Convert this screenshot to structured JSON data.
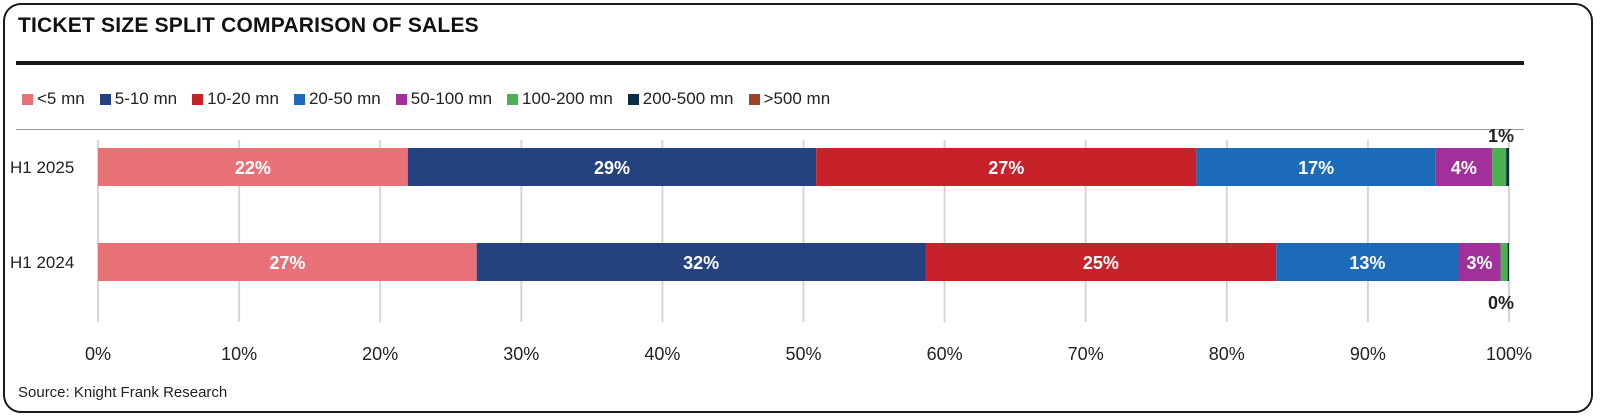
{
  "title": "TICKET SIZE SPLIT COMPARISON OF SALES",
  "source": "Source: Knight Frank Research",
  "chart_data": {
    "type": "bar",
    "orientation": "horizontal",
    "stacked": true,
    "categories": [
      "H1 2025",
      "H1 2024"
    ],
    "series": [
      {
        "name": "<5 mn",
        "color": "#e87177",
        "values": [
          22,
          27
        ],
        "labels": [
          "22%",
          "27%"
        ]
      },
      {
        "name": "5-10 mn",
        "color": "#23427f",
        "values": [
          29,
          32
        ],
        "labels": [
          "29%",
          "32%"
        ]
      },
      {
        "name": "10-20 mn",
        "color": "#c72229",
        "values": [
          27,
          25
        ],
        "labels": [
          "27%",
          "25%"
        ]
      },
      {
        "name": "20-50 mn",
        "color": "#1c6bb8",
        "values": [
          17,
          13
        ],
        "labels": [
          "17%",
          "13%"
        ]
      },
      {
        "name": "50-100 mn",
        "color": "#a1309a",
        "values": [
          4,
          3
        ],
        "labels": [
          "4%",
          "3%"
        ]
      },
      {
        "name": "100-200 mn",
        "color": "#4caf50",
        "values": [
          1,
          0.5
        ],
        "labels": [
          "",
          ""
        ]
      },
      {
        "name": "200-500 mn",
        "color": "#0d2c45",
        "values": [
          0.2,
          0.1
        ],
        "labels": [
          "",
          ""
        ]
      },
      {
        "name": ">500 mn",
        "color": "#a0412c",
        "values": [
          0,
          0
        ],
        "labels": [
          "",
          ""
        ]
      }
    ],
    "outside_labels": [
      {
        "category": "H1 2025",
        "text": "1%",
        "position": "above"
      },
      {
        "category": "H1 2024",
        "text": "0%",
        "position": "below"
      }
    ],
    "xlim": [
      0,
      100
    ],
    "xticks": [
      "0%",
      "10%",
      "20%",
      "30%",
      "40%",
      "50%",
      "60%",
      "70%",
      "80%",
      "90%",
      "100%"
    ],
    "grid": "vertical",
    "legend": "top-left"
  }
}
